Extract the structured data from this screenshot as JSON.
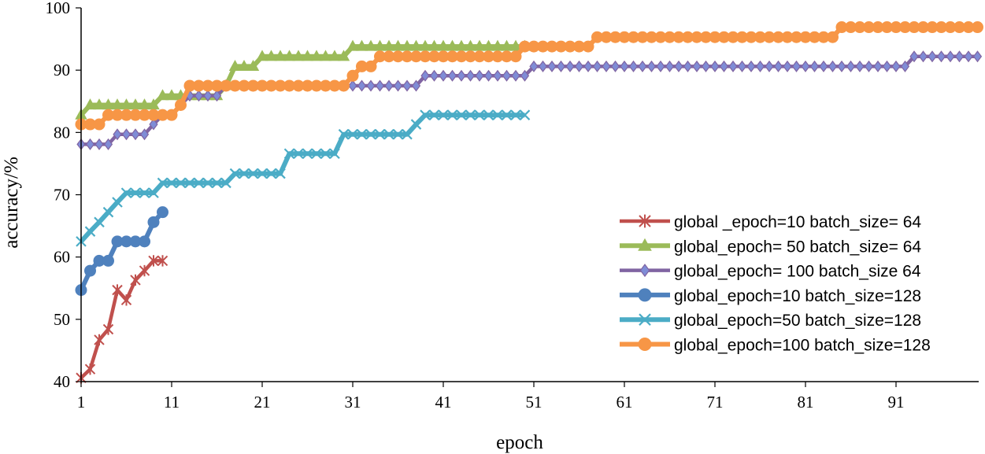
{
  "chart_data": {
    "type": "line",
    "title": "",
    "xlabel": "epoch",
    "ylabel": "accuracy/%",
    "xlim": [
      1,
      100
    ],
    "ylim": [
      40,
      100
    ],
    "x_ticks": [
      1,
      11,
      21,
      31,
      41,
      51,
      61,
      71,
      81,
      91
    ],
    "y_ticks": [
      40,
      50,
      60,
      70,
      80,
      90,
      100
    ],
    "grid": false,
    "legend_position": "bottom-right",
    "series": [
      {
        "name": "global _epoch=10 batch_size= 64",
        "color": "#C0504D",
        "marker": "asterisk",
        "x": [
          1,
          2,
          3,
          4,
          5,
          6,
          7,
          8,
          9,
          10
        ],
        "y": [
          40.6,
          42.0,
          46.7,
          48.4,
          54.7,
          53.1,
          56.3,
          57.8,
          59.4,
          59.4
        ]
      },
      {
        "name": "global_epoch= 50 batch_size= 64",
        "color": "#9BBB59",
        "marker": "triangle",
        "x": [
          1,
          2,
          3,
          4,
          5,
          6,
          7,
          8,
          9,
          10,
          11,
          12,
          13,
          14,
          15,
          16,
          17,
          18,
          19,
          20,
          21,
          22,
          23,
          24,
          25,
          26,
          27,
          28,
          29,
          30,
          31,
          32,
          33,
          34,
          35,
          36,
          37,
          38,
          39,
          40,
          41,
          42,
          43,
          44,
          45,
          46,
          47,
          48,
          49,
          50
        ],
        "y": [
          82.8,
          84.4,
          84.4,
          84.4,
          84.4,
          84.4,
          84.4,
          84.4,
          84.4,
          85.9,
          85.9,
          85.9,
          85.9,
          85.9,
          85.9,
          85.9,
          87.5,
          90.6,
          90.6,
          90.6,
          92.2,
          92.2,
          92.2,
          92.2,
          92.2,
          92.2,
          92.2,
          92.2,
          92.2,
          92.2,
          93.8,
          93.8,
          93.8,
          93.8,
          93.8,
          93.8,
          93.8,
          93.8,
          93.8,
          93.8,
          93.8,
          93.8,
          93.8,
          93.8,
          93.8,
          93.8,
          93.8,
          93.8,
          93.8,
          93.8
        ]
      },
      {
        "name": "global_epoch= 100  batch_size 64",
        "color": "#8064A2",
        "marker": "diamond",
        "x": [
          1,
          2,
          3,
          4,
          5,
          6,
          7,
          8,
          9,
          10,
          11,
          12,
          13,
          14,
          15,
          16,
          17,
          18,
          19,
          20,
          21,
          22,
          23,
          24,
          25,
          26,
          27,
          28,
          29,
          30,
          31,
          32,
          33,
          34,
          35,
          36,
          37,
          38,
          39,
          40,
          41,
          42,
          43,
          44,
          45,
          46,
          47,
          48,
          49,
          50,
          51,
          52,
          53,
          54,
          55,
          56,
          57,
          58,
          59,
          60,
          61,
          62,
          63,
          64,
          65,
          66,
          67,
          68,
          69,
          70,
          71,
          72,
          73,
          74,
          75,
          76,
          77,
          78,
          79,
          80,
          81,
          82,
          83,
          84,
          85,
          86,
          87,
          88,
          89,
          90,
          91,
          92,
          93,
          94,
          95,
          96,
          97,
          98,
          99,
          100
        ],
        "y": [
          78.1,
          78.1,
          78.1,
          78.1,
          79.7,
          79.7,
          79.7,
          79.7,
          81.3,
          82.8,
          82.8,
          84.4,
          85.9,
          85.9,
          85.9,
          85.9,
          87.5,
          87.5,
          87.5,
          87.5,
          87.5,
          87.5,
          87.5,
          87.5,
          87.5,
          87.5,
          87.5,
          87.5,
          87.5,
          87.5,
          87.5,
          87.5,
          87.5,
          87.5,
          87.5,
          87.5,
          87.5,
          87.5,
          89.1,
          89.1,
          89.1,
          89.1,
          89.1,
          89.1,
          89.1,
          89.1,
          89.1,
          89.1,
          89.1,
          89.1,
          90.6,
          90.6,
          90.6,
          90.6,
          90.6,
          90.6,
          90.6,
          90.6,
          90.6,
          90.6,
          90.6,
          90.6,
          90.6,
          90.6,
          90.6,
          90.6,
          90.6,
          90.6,
          90.6,
          90.6,
          90.6,
          90.6,
          90.6,
          90.6,
          90.6,
          90.6,
          90.6,
          90.6,
          90.6,
          90.6,
          90.6,
          90.6,
          90.6,
          90.6,
          90.6,
          90.6,
          90.6,
          90.6,
          90.6,
          90.6,
          90.6,
          90.6,
          92.2,
          92.2,
          92.2,
          92.2,
          92.2,
          92.2,
          92.2,
          92.2
        ]
      },
      {
        "name": "global_epoch=10 batch_size=128",
        "color": "#4F81BD",
        "marker": "circle",
        "x": [
          1,
          2,
          3,
          4,
          5,
          6,
          7,
          8,
          9,
          10
        ],
        "y": [
          54.7,
          57.8,
          59.4,
          59.4,
          62.5,
          62.5,
          62.5,
          62.5,
          65.6,
          67.2
        ]
      },
      {
        "name": "global_epoch=50 batch_size=128",
        "color": "#4BACC6",
        "marker": "x",
        "x": [
          1,
          2,
          3,
          4,
          5,
          6,
          7,
          8,
          9,
          10,
          11,
          12,
          13,
          14,
          15,
          16,
          17,
          18,
          19,
          20,
          21,
          22,
          23,
          24,
          25,
          26,
          27,
          28,
          29,
          30,
          31,
          32,
          33,
          34,
          35,
          36,
          37,
          38,
          39,
          40,
          41,
          42,
          43,
          44,
          45,
          46,
          47,
          48,
          49,
          50
        ],
        "y": [
          62.5,
          64.1,
          65.6,
          67.2,
          68.8,
          70.3,
          70.3,
          70.3,
          70.3,
          71.9,
          71.9,
          71.9,
          71.9,
          71.9,
          71.9,
          71.9,
          71.9,
          73.4,
          73.4,
          73.4,
          73.4,
          73.4,
          73.4,
          76.6,
          76.6,
          76.6,
          76.6,
          76.6,
          76.6,
          79.7,
          79.7,
          79.7,
          79.7,
          79.7,
          79.7,
          79.7,
          79.7,
          81.3,
          82.8,
          82.8,
          82.8,
          82.8,
          82.8,
          82.8,
          82.8,
          82.8,
          82.8,
          82.8,
          82.8,
          82.8
        ]
      },
      {
        "name": "global_epoch=100 batch_size=128",
        "color": "#F79646",
        "marker": "circle",
        "x": [
          1,
          2,
          3,
          4,
          5,
          6,
          7,
          8,
          9,
          10,
          11,
          12,
          13,
          14,
          15,
          16,
          17,
          18,
          19,
          20,
          21,
          22,
          23,
          24,
          25,
          26,
          27,
          28,
          29,
          30,
          31,
          32,
          33,
          34,
          35,
          36,
          37,
          38,
          39,
          40,
          41,
          42,
          43,
          44,
          45,
          46,
          47,
          48,
          49,
          50,
          51,
          52,
          53,
          54,
          55,
          56,
          57,
          58,
          59,
          60,
          61,
          62,
          63,
          64,
          65,
          66,
          67,
          68,
          69,
          70,
          71,
          72,
          73,
          74,
          75,
          76,
          77,
          78,
          79,
          80,
          81,
          82,
          83,
          84,
          85,
          86,
          87,
          88,
          89,
          90,
          91,
          92,
          93,
          94,
          95,
          96,
          97,
          98,
          99,
          100
        ],
        "y": [
          81.3,
          81.3,
          81.3,
          82.8,
          82.8,
          82.8,
          82.8,
          82.8,
          82.8,
          82.8,
          82.8,
          84.4,
          87.5,
          87.5,
          87.5,
          87.5,
          87.5,
          87.5,
          87.5,
          87.5,
          87.5,
          87.5,
          87.5,
          87.5,
          87.5,
          87.5,
          87.5,
          87.5,
          87.5,
          87.5,
          89.1,
          90.6,
          90.6,
          92.2,
          92.2,
          92.2,
          92.2,
          92.2,
          92.2,
          92.2,
          92.2,
          92.2,
          92.2,
          92.2,
          92.2,
          92.2,
          92.2,
          92.2,
          92.2,
          93.8,
          93.8,
          93.8,
          93.8,
          93.8,
          93.8,
          93.8,
          93.8,
          95.3,
          95.3,
          95.3,
          95.3,
          95.3,
          95.3,
          95.3,
          95.3,
          95.3,
          95.3,
          95.3,
          95.3,
          95.3,
          95.3,
          95.3,
          95.3,
          95.3,
          95.3,
          95.3,
          95.3,
          95.3,
          95.3,
          95.3,
          95.3,
          95.3,
          95.3,
          95.3,
          96.9,
          96.9,
          96.9,
          96.9,
          96.9,
          96.9,
          96.9,
          96.9,
          96.9,
          96.9,
          96.9,
          96.9,
          96.9,
          96.9,
          96.9,
          96.9
        ]
      }
    ]
  }
}
